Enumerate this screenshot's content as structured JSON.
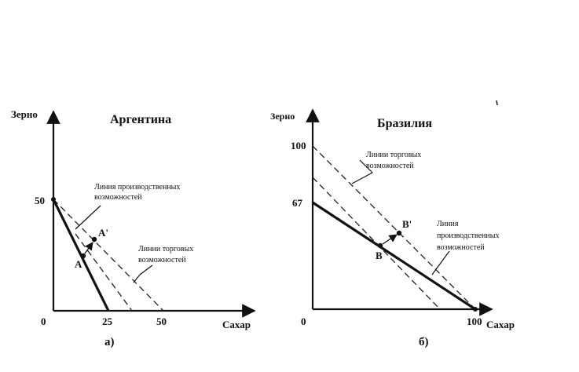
{
  "panel_a": {
    "title": "Аргентина",
    "ylabel": "Зерно",
    "xlabel": "Сахар",
    "origin": "0",
    "y_tick": "50",
    "x_ticks": [
      "25",
      "50"
    ],
    "ppf_label_1": "Линия производственных",
    "ppf_label_2": "возможностей",
    "tpf_label_1": "Линии торговых",
    "tpf_label_2": "возможностей",
    "point_a": "A",
    "point_a_prime": "A'",
    "caption": "а)"
  },
  "panel_b": {
    "title": "Бразилия",
    "ylabel": "Зерно",
    "xlabel": "Сахар",
    "origin": "0",
    "y_ticks": [
      "100",
      "67"
    ],
    "x_tick": "100",
    "tpf_label_1": "Линии торговых",
    "tpf_label_2": "возможностей",
    "ppf_label_1": "Линия",
    "ppf_label_2": "производственных",
    "ppf_label_3": "возможностей",
    "point_b": "B",
    "point_b_prime": "B'",
    "caption": "б)"
  },
  "chart_data": [
    {
      "type": "line",
      "title": "Аргентина",
      "xlabel": "Сахар",
      "ylabel": "Зерно",
      "series": [
        {
          "name": "Линия производственных возможностей",
          "x": [
            0,
            25
          ],
          "y": [
            50,
            0
          ],
          "style": "solid"
        },
        {
          "name": "Линии торговых возможностей",
          "x": [
            0,
            50
          ],
          "y": [
            50,
            0
          ],
          "style": "dashed"
        },
        {
          "x": [
            12,
            36
          ],
          "y": [
            36,
            0
          ],
          "style": "dashed"
        }
      ],
      "points": [
        {
          "label": "A",
          "x": 12,
          "y": 26
        },
        {
          "label": "A'",
          "x": 19,
          "y": 32
        }
      ]
    },
    {
      "type": "line",
      "title": "Бразилия",
      "xlabel": "Сахар",
      "ylabel": "Зерно",
      "series": [
        {
          "name": "Линия производственных возможностей",
          "x": [
            0,
            100
          ],
          "y": [
            67,
            0
          ],
          "style": "solid"
        },
        {
          "name": "Линии торговых возможностей",
          "x": [
            0,
            100
          ],
          "y": [
            100,
            0
          ],
          "style": "dashed"
        },
        {
          "x": [
            0,
            78
          ],
          "y": [
            80,
            0
          ],
          "style": "dashed"
        }
      ],
      "points": [
        {
          "label": "B",
          "x": 42,
          "y": 39
        },
        {
          "label": "B'",
          "x": 55,
          "y": 47
        }
      ]
    }
  ]
}
